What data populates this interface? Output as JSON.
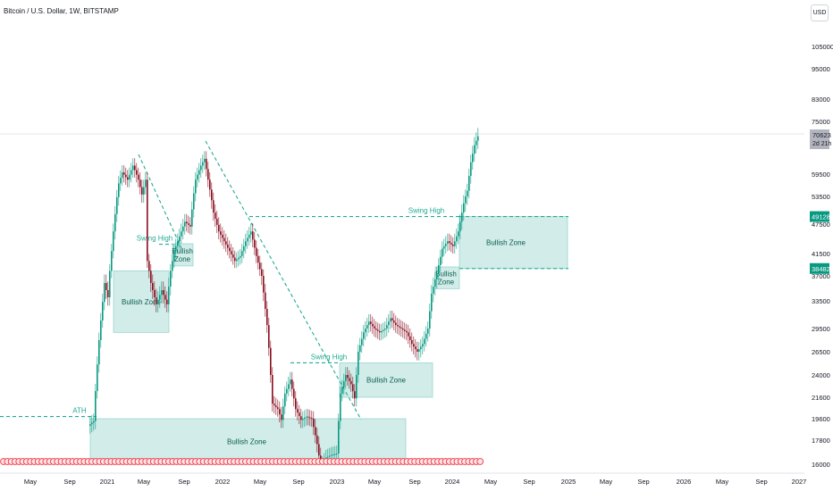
{
  "header": {
    "title": "Bitcoin / U.S. Dollar, 1W, BITSTAMP",
    "currency": "USD"
  },
  "chart_data": {
    "type": "candlestick",
    "x_tick_labels": [
      "May",
      "Sep",
      "2021",
      "May",
      "Sep",
      "2022",
      "May",
      "Sep",
      "2023",
      "May",
      "Sep",
      "2024",
      "May",
      "Sep",
      "2025",
      "May",
      "Sep",
      "2026",
      "May",
      "Sep",
      "2027"
    ],
    "y_tick_labels": [
      "105000",
      "95000",
      "83000",
      "75000",
      "59500",
      "53500",
      "47500",
      "41500",
      "37000",
      "33500",
      "29500",
      "26500",
      "24000",
      "21600",
      "19600",
      "17800",
      "16000"
    ],
    "last_price": {
      "value": "70623",
      "countdown": "2d 21h"
    },
    "price_labels": [
      {
        "value": "49128"
      },
      {
        "value": "38482"
      }
    ],
    "zones": [
      {
        "label": "Bullish Zone",
        "low": 15500,
        "high": 19600
      },
      {
        "label": "Bullish Zone",
        "low": 29000,
        "high": 38000
      },
      {
        "label": "Bullish\nZone",
        "low": 39000,
        "high": 43500
      },
      {
        "label": "Bullish Zone",
        "low": 21600,
        "high": 25300
      },
      {
        "label": "Bullish\nZone",
        "low": 35200,
        "high": 38800
      },
      {
        "label": "Bullish Zone",
        "low": 38482,
        "high": 49128
      }
    ],
    "annotations": [
      {
        "text": "ATH",
        "value": 19800
      },
      {
        "text": "Swing High",
        "value": 43400
      },
      {
        "text": "Swing High",
        "value": 25300
      },
      {
        "text": "Swing High",
        "value": 49128
      }
    ],
    "colors": {
      "up": "#089981",
      "down": "#880e1f",
      "zone": "#b2dfdb",
      "line": "#22ab94",
      "event": "#f23645"
    }
  }
}
